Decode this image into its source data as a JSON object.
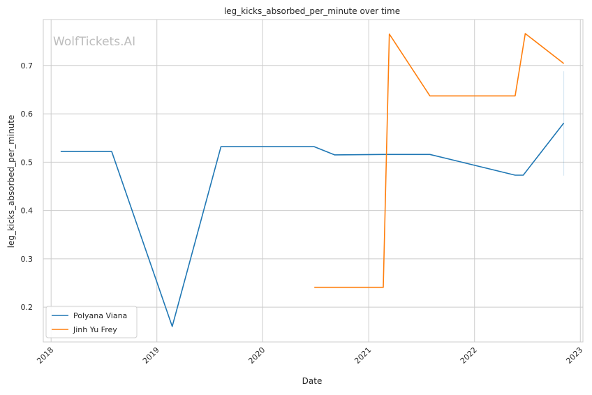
{
  "chart_data": {
    "type": "line",
    "title": "leg_kicks_absorbed_per_minute over time",
    "xlabel": "Date",
    "ylabel": "leg_kicks_absorbed_per_minute",
    "watermark": "WolfTickets.AI",
    "x_ticks": [
      "2018",
      "2019",
      "2020",
      "2021",
      "2022",
      "2023"
    ],
    "y_ticks": [
      "0.2",
      "0.3",
      "0.4",
      "0.5",
      "0.6",
      "0.7"
    ],
    "xlim": [
      "2017-12-05",
      "2023-01-10"
    ],
    "ylim": [
      0.128,
      0.795
    ],
    "grid": true,
    "legend_position": "lower-left",
    "series": [
      {
        "name": "Polyana Viana",
        "color": "#1f77b4",
        "points": [
          {
            "x": "2018-02-03",
            "y": 0.522
          },
          {
            "x": "2018-07-29",
            "y": 0.522
          },
          {
            "x": "2019-02-23",
            "y": 0.16
          },
          {
            "x": "2019-08-10",
            "y": 0.532
          },
          {
            "x": "2020-06-27",
            "y": 0.532
          },
          {
            "x": "2020-09-05",
            "y": 0.515
          },
          {
            "x": "2021-02-20",
            "y": 0.516
          },
          {
            "x": "2021-07-31",
            "y": 0.516
          },
          {
            "x": "2022-05-21",
            "y": 0.473
          },
          {
            "x": "2022-06-18",
            "y": 0.473
          },
          {
            "x": "2022-11-05",
            "y": 0.581
          }
        ]
      },
      {
        "name": "Jinh Yu Frey",
        "color": "#ff7f0e",
        "points": [
          {
            "x": "2020-06-27",
            "y": 0.241
          },
          {
            "x": "2021-02-20",
            "y": 0.241
          },
          {
            "x": "2021-03-13",
            "y": 0.765
          },
          {
            "x": "2021-07-31",
            "y": 0.637
          },
          {
            "x": "2022-05-21",
            "y": 0.637
          },
          {
            "x": "2022-06-25",
            "y": 0.766
          },
          {
            "x": "2022-11-05",
            "y": 0.704
          }
        ]
      }
    ],
    "error_band": {
      "x": "2022-11-05",
      "y_range": [
        0.472,
        0.688
      ]
    }
  }
}
